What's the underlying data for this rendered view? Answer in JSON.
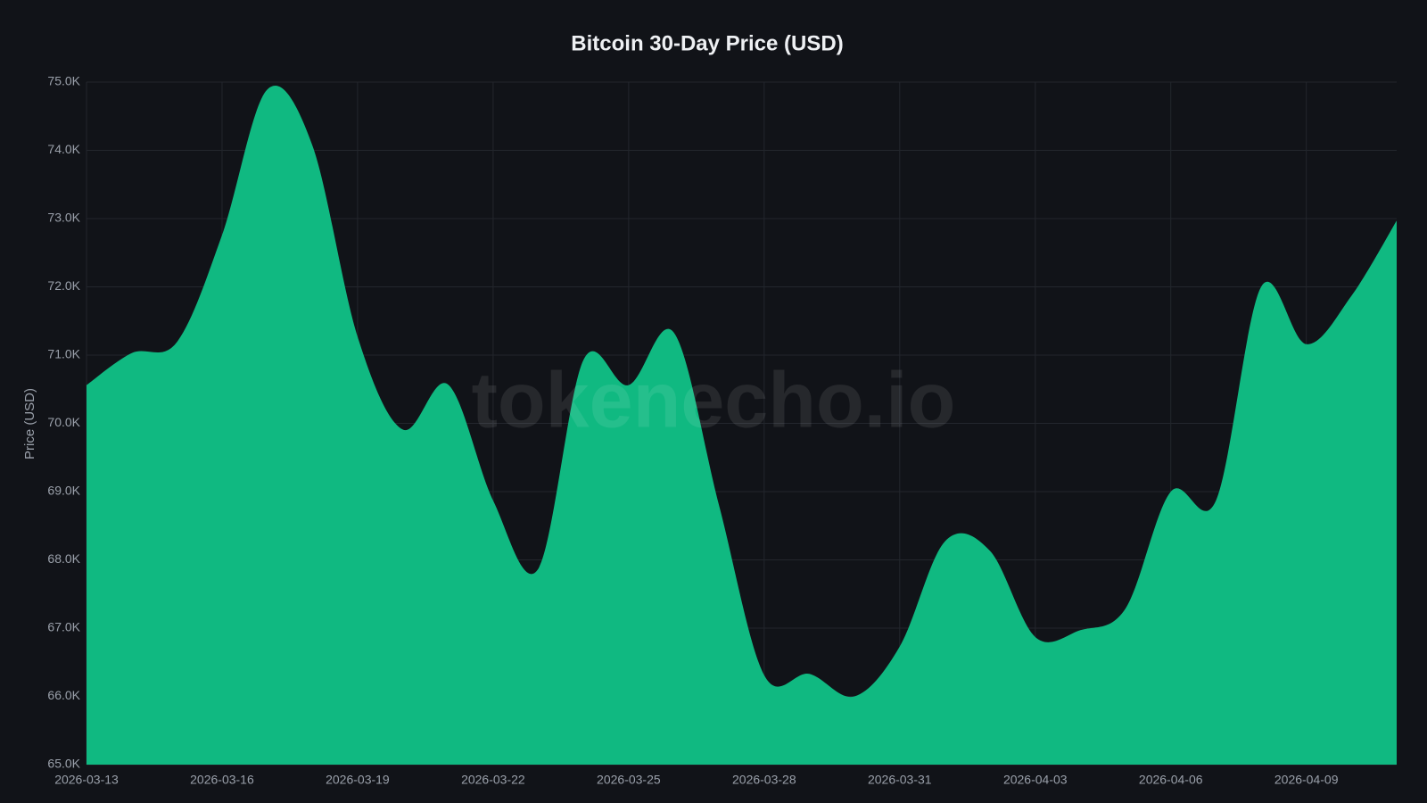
{
  "chart_data": {
    "type": "area",
    "title": "Bitcoin 30-Day Price (USD)",
    "y_label": "Price (USD)",
    "watermark": "tokenecho.io",
    "color": "#10b981",
    "grid": true,
    "x": [
      "2026-03-13",
      "2026-03-14",
      "2026-03-15",
      "2026-03-16",
      "2026-03-17",
      "2026-03-18",
      "2026-03-19",
      "2026-03-20",
      "2026-03-21",
      "2026-03-22",
      "2026-03-23",
      "2026-03-24",
      "2026-03-25",
      "2026-03-26",
      "2026-03-27",
      "2026-03-28",
      "2026-03-29",
      "2026-03-30",
      "2026-03-31",
      "2026-04-01",
      "2026-04-02",
      "2026-04-03",
      "2026-04-04",
      "2026-04-05",
      "2026-04-06",
      "2026-04-07",
      "2026-04-08",
      "2026-04-09",
      "2026-04-10",
      "2026-04-11"
    ],
    "values": [
      70560,
      71030,
      71190,
      72760,
      74890,
      74070,
      71270,
      69910,
      70570,
      68870,
      67870,
      70930,
      70560,
      71330,
      68800,
      66310,
      66330,
      66000,
      66730,
      68270,
      68130,
      66870,
      66970,
      67290,
      69000,
      68870,
      72000,
      71160,
      71870,
      72970
    ],
    "xticks": [
      "2026-03-13",
      "2026-03-16",
      "2026-03-19",
      "2026-03-22",
      "2026-03-25",
      "2026-03-28",
      "2026-03-31",
      "2026-04-03",
      "2026-04-06",
      "2026-04-09"
    ],
    "ylim": [
      65000,
      75000
    ],
    "yticks": [
      {
        "value": 65000,
        "label": "65.0K"
      },
      {
        "value": 66000,
        "label": "66.0K"
      },
      {
        "value": 67000,
        "label": "67.0K"
      },
      {
        "value": 68000,
        "label": "68.0K"
      },
      {
        "value": 69000,
        "label": "69.0K"
      },
      {
        "value": 70000,
        "label": "70.0K"
      },
      {
        "value": 71000,
        "label": "71.0K"
      },
      {
        "value": 72000,
        "label": "72.0K"
      },
      {
        "value": 73000,
        "label": "73.0K"
      },
      {
        "value": 74000,
        "label": "74.0K"
      },
      {
        "value": 75000,
        "label": "75.0K"
      }
    ]
  }
}
